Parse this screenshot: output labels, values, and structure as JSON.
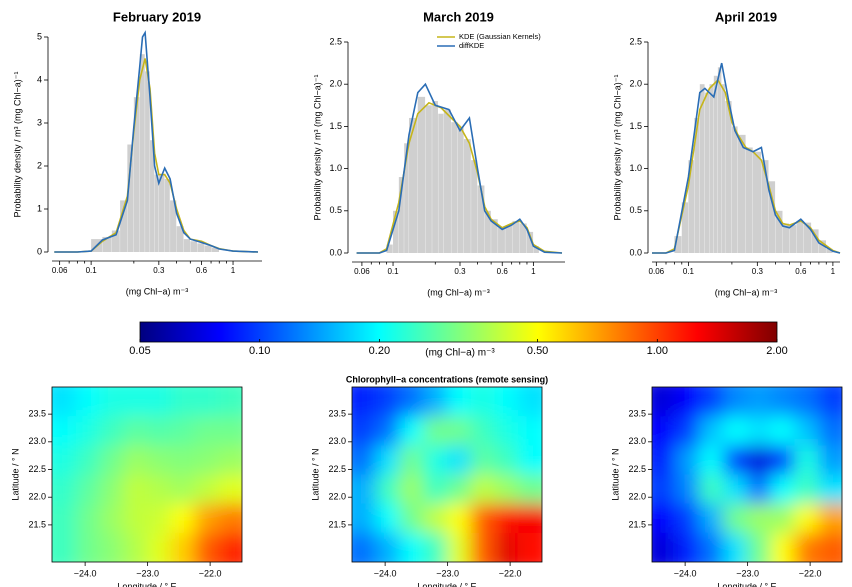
{
  "maps_title": "Chlorophyll−a concentrations (remote sensing)",
  "chart_data": [
    {
      "type": "density",
      "title": "February 2019",
      "xlabel": "(mg Chl−a) m⁻³",
      "ylabel": "Probability density / m³ (mg Chl−a)⁻¹",
      "xscale": "log",
      "xlim": [
        0.053,
        1.6
      ],
      "xticks": [
        0.06,
        0.1,
        0.3,
        0.6,
        1
      ],
      "xminorticks": [
        0.07,
        0.08,
        0.09,
        0.2,
        0.4,
        0.5,
        0.7,
        0.8,
        0.9
      ],
      "ylim": [
        0,
        5
      ],
      "yticks": [
        0,
        1,
        2,
        3,
        4,
        5
      ],
      "histogram": {
        "color": "#cfcfcf",
        "bins": [
          0.1,
          0.12,
          0.14,
          0.16,
          0.18,
          0.2,
          0.22,
          0.24,
          0.26,
          0.28,
          0.3,
          0.33,
          0.36,
          0.4,
          0.45,
          0.5,
          0.56,
          0.63,
          0.71,
          0.8
        ],
        "counts": [
          0.3,
          0.35,
          0.5,
          1.2,
          2.5,
          3.6,
          4.6,
          4.2,
          2.6,
          1.8,
          1.8,
          1.7,
          1.2,
          0.6,
          0.3,
          0.25,
          0.2,
          0.15,
          0.1
        ]
      },
      "series": [
        {
          "name": "KDE (Gaussian Kernels)",
          "color": "#c5b51a",
          "x": [
            0.055,
            0.08,
            0.1,
            0.12,
            0.15,
            0.18,
            0.2,
            0.22,
            0.24,
            0.26,
            0.28,
            0.3,
            0.33,
            0.36,
            0.4,
            0.45,
            0.5,
            0.6,
            0.7,
            0.8,
            1,
            1.5
          ],
          "values": [
            0,
            0,
            0.02,
            0.25,
            0.45,
            1.3,
            2.8,
            4.0,
            4.5,
            3.8,
            2.3,
            1.8,
            1.8,
            1.6,
            1.0,
            0.5,
            0.3,
            0.25,
            0.15,
            0.08,
            0.02,
            0
          ]
        },
        {
          "name": "diffKDE",
          "color": "#2a6db5",
          "x": [
            0.055,
            0.08,
            0.1,
            0.12,
            0.15,
            0.18,
            0.2,
            0.22,
            0.23,
            0.24,
            0.26,
            0.28,
            0.3,
            0.33,
            0.36,
            0.4,
            0.45,
            0.5,
            0.6,
            0.7,
            0.8,
            1,
            1.5
          ],
          "values": [
            0,
            0,
            0.02,
            0.28,
            0.4,
            1.2,
            2.9,
            4.3,
            5.0,
            5.1,
            3.6,
            2.0,
            1.6,
            1.95,
            1.7,
            0.9,
            0.45,
            0.3,
            0.22,
            0.15,
            0.07,
            0.02,
            0
          ]
        }
      ]
    },
    {
      "type": "density",
      "title": "March 2019",
      "xlabel": "(mg Chl−a) m⁻³",
      "ylabel": "Probability density / m³ (mg Chl−a)⁻¹",
      "xscale": "log",
      "xlim": [
        0.051,
        1.68
      ],
      "xticks": [
        0.06,
        0.1,
        0.3,
        0.6,
        1
      ],
      "xminorticks": [
        0.07,
        0.08,
        0.09,
        0.2,
        0.4,
        0.5,
        0.7,
        0.8,
        0.9
      ],
      "ylim": [
        0,
        2.5
      ],
      "yticks": [
        {
          "value": 0,
          "label": "0.0"
        },
        0.5,
        {
          "value": 1,
          "label": "1.0"
        },
        1.5,
        {
          "value": 2,
          "label": "2.0"
        },
        2.5
      ],
      "legend": "top-right",
      "histogram": {
        "color": "#cfcfcf",
        "bins": [
          0.09,
          0.1,
          0.11,
          0.12,
          0.13,
          0.15,
          0.17,
          0.19,
          0.21,
          0.23,
          0.26,
          0.29,
          0.32,
          0.36,
          0.4,
          0.45,
          0.5,
          0.56,
          0.63,
          0.71,
          0.8,
          0.9,
          1.0,
          1.1
        ],
        "counts": [
          0.1,
          0.5,
          0.9,
          1.3,
          1.6,
          1.85,
          1.75,
          1.8,
          1.65,
          1.7,
          1.55,
          1.5,
          1.35,
          1.1,
          0.8,
          0.5,
          0.4,
          0.3,
          0.32,
          0.38,
          0.35,
          0.25,
          0.08
        ]
      },
      "series": [
        {
          "name": "KDE (Gaussian Kernels)",
          "color": "#c5b51a",
          "x": [
            0.055,
            0.08,
            0.09,
            0.11,
            0.13,
            0.15,
            0.18,
            0.22,
            0.26,
            0.3,
            0.35,
            0.4,
            0.45,
            0.5,
            0.6,
            0.7,
            0.8,
            0.9,
            1,
            1.2,
            1.6
          ],
          "values": [
            0,
            0,
            0.05,
            0.6,
            1.3,
            1.65,
            1.78,
            1.72,
            1.6,
            1.5,
            1.3,
            0.95,
            0.55,
            0.4,
            0.3,
            0.35,
            0.38,
            0.3,
            0.1,
            0.02,
            0
          ]
        },
        {
          "name": "diffKDE",
          "color": "#2a6db5",
          "x": [
            0.055,
            0.08,
            0.09,
            0.11,
            0.13,
            0.15,
            0.17,
            0.2,
            0.25,
            0.3,
            0.35,
            0.4,
            0.45,
            0.5,
            0.6,
            0.7,
            0.8,
            0.9,
            1,
            1.2,
            1.6
          ],
          "values": [
            0,
            0,
            0.03,
            0.5,
            1.4,
            1.9,
            2.0,
            1.75,
            1.7,
            1.45,
            1.6,
            1.0,
            0.5,
            0.38,
            0.28,
            0.33,
            0.4,
            0.28,
            0.08,
            0.01,
            0
          ]
        }
      ]
    },
    {
      "type": "density",
      "title": "April 2019",
      "xlabel": "(mg Chl−a) m⁻³",
      "ylabel": "Probability density / m³ (mg Chl−a)⁻¹",
      "xscale": "log",
      "xlim": [
        0.056,
        1.12
      ],
      "xticks": [
        0.06,
        0.1,
        0.3,
        0.6,
        1
      ],
      "xminorticks": [
        0.07,
        0.08,
        0.09,
        0.2,
        0.4,
        0.5,
        0.7,
        0.8,
        0.9
      ],
      "ylim": [
        0,
        2.5
      ],
      "yticks": [
        {
          "value": 0,
          "label": "0.0"
        },
        0.5,
        {
          "value": 1,
          "label": "1.0"
        },
        1.5,
        {
          "value": 2,
          "label": "2.0"
        },
        2.5
      ],
      "histogram": {
        "color": "#cfcfcf",
        "bins": [
          0.08,
          0.09,
          0.1,
          0.11,
          0.12,
          0.13,
          0.14,
          0.15,
          0.16,
          0.17,
          0.18,
          0.2,
          0.22,
          0.25,
          0.28,
          0.32,
          0.36,
          0.4,
          0.45,
          0.5,
          0.56,
          0.63,
          0.71,
          0.8,
          0.9,
          1.0
        ],
        "counts": [
          0.2,
          0.6,
          1.1,
          1.6,
          2.0,
          1.9,
          2.0,
          2.1,
          2.2,
          2.0,
          1.8,
          1.5,
          1.4,
          1.25,
          1.2,
          1.1,
          0.85,
          0.5,
          0.35,
          0.33,
          0.38,
          0.36,
          0.28,
          0.15,
          0.05
        ]
      },
      "series": [
        {
          "name": "KDE (Gaussian Kernels)",
          "color": "#c5b51a",
          "x": [
            0.056,
            0.07,
            0.08,
            0.1,
            0.12,
            0.14,
            0.16,
            0.18,
            0.2,
            0.22,
            0.25,
            0.28,
            0.32,
            0.36,
            0.4,
            0.45,
            0.5,
            0.6,
            0.7,
            0.8,
            1,
            1.12
          ],
          "values": [
            0,
            0,
            0.05,
            0.8,
            1.7,
            1.95,
            2.05,
            1.9,
            1.55,
            1.4,
            1.25,
            1.2,
            1.1,
            0.8,
            0.5,
            0.35,
            0.33,
            0.38,
            0.3,
            0.15,
            0.03,
            0
          ]
        },
        {
          "name": "diffKDE",
          "color": "#2a6db5",
          "x": [
            0.056,
            0.07,
            0.08,
            0.1,
            0.12,
            0.13,
            0.15,
            0.17,
            0.19,
            0.21,
            0.24,
            0.28,
            0.32,
            0.36,
            0.4,
            0.45,
            0.5,
            0.6,
            0.7,
            0.8,
            1,
            1.12
          ],
          "values": [
            0,
            0,
            0.03,
            0.9,
            1.9,
            1.95,
            1.85,
            2.25,
            1.8,
            1.45,
            1.25,
            1.2,
            1.25,
            0.75,
            0.45,
            0.32,
            0.3,
            0.4,
            0.28,
            0.12,
            0.02,
            0
          ]
        }
      ]
    },
    {
      "type": "colorbar",
      "label": "(mg Chl−a) m⁻³",
      "scale": "log",
      "lim": [
        0.05,
        2
      ],
      "ticks": [
        0.05,
        {
          "value": 0.1,
          "label": "0.10"
        },
        {
          "value": 0.2,
          "label": "0.20"
        },
        {
          "value": 0.5,
          "label": "0.50"
        },
        {
          "value": 1,
          "label": "1.00"
        },
        {
          "value": 2,
          "label": "2.00"
        }
      ],
      "colormap": [
        "#00007f",
        "#0000ff",
        "#007fff",
        "#00ffff",
        "#7fff7f",
        "#ffff00",
        "#ff7f00",
        "#ff0000",
        "#7f0000"
      ]
    },
    {
      "type": "heatmap",
      "xlabel": "Longitude / ° E",
      "ylabel": "Latitude / ° N",
      "xlim": [
        -24.53,
        -21.49
      ],
      "ylim": [
        20.83,
        23.99
      ],
      "xticks": [
        {
          "value": -24,
          "label": "−24.0"
        },
        {
          "value": -23,
          "label": "−23.0"
        },
        {
          "value": -22,
          "label": "−22.0"
        }
      ],
      "yticks": [
        21.5,
        {
          "value": 22,
          "label": "22.0"
        },
        22.5,
        {
          "value": 23,
          "label": "23.0"
        },
        23.5
      ],
      "z": [
        [
          0.18,
          0.2,
          0.22,
          0.22,
          0.22,
          0.24,
          0.24,
          0.25
        ],
        [
          0.2,
          0.22,
          0.25,
          0.28,
          0.27,
          0.28,
          0.3,
          0.3
        ],
        [
          0.22,
          0.25,
          0.3,
          0.35,
          0.33,
          0.32,
          0.33,
          0.35
        ],
        [
          0.24,
          0.28,
          0.33,
          0.4,
          0.38,
          0.36,
          0.4,
          0.45
        ],
        [
          0.25,
          0.3,
          0.35,
          0.4,
          0.42,
          0.5,
          0.7,
          0.8
        ],
        [
          0.25,
          0.3,
          0.33,
          0.38,
          0.45,
          0.6,
          0.9,
          1.1
        ]
      ]
    },
    {
      "type": "heatmap",
      "xlabel": "Longitude / ° E",
      "ylabel": "Latitude / ° N",
      "xlim": [
        -24.53,
        -21.49
      ],
      "ylim": [
        20.83,
        23.99
      ],
      "xticks": [
        {
          "value": -24,
          "label": "−24.0"
        },
        {
          "value": -23,
          "label": "−23.0"
        },
        {
          "value": -22,
          "label": "−22.0"
        }
      ],
      "yticks": [
        21.5,
        {
          "value": 22,
          "label": "22.0"
        },
        22.5,
        {
          "value": 23,
          "label": "23.0"
        },
        23.5
      ],
      "z": [
        [
          0.09,
          0.1,
          0.12,
          0.15,
          0.2,
          0.22,
          0.2,
          0.18
        ],
        [
          0.1,
          0.12,
          0.2,
          0.3,
          0.3,
          0.25,
          0.22,
          0.2
        ],
        [
          0.12,
          0.18,
          0.3,
          0.22,
          0.18,
          0.28,
          0.25,
          0.2
        ],
        [
          0.15,
          0.25,
          0.35,
          0.25,
          0.3,
          0.4,
          0.35,
          0.3
        ],
        [
          0.15,
          0.2,
          0.3,
          0.4,
          0.5,
          0.9,
          1.2,
          1.3
        ],
        [
          0.12,
          0.15,
          0.2,
          0.25,
          0.45,
          0.9,
          1.4,
          1.2
        ]
      ]
    },
    {
      "type": "heatmap",
      "xlabel": "Longitude / ° E",
      "ylabel": "Latitude / ° N",
      "xlim": [
        -24.53,
        -21.49
      ],
      "ylim": [
        20.83,
        23.99
      ],
      "xticks": [
        {
          "value": -24,
          "label": "−24.0"
        },
        {
          "value": -23,
          "label": "−23.0"
        },
        {
          "value": -22,
          "label": "−22.0"
        }
      ],
      "yticks": [
        21.5,
        {
          "value": 22,
          "label": "22.0"
        },
        22.5,
        {
          "value": 23,
          "label": "23.0"
        },
        23.5
      ],
      "z": [
        [
          0.07,
          0.08,
          0.1,
          0.13,
          0.14,
          0.13,
          0.12,
          0.1
        ],
        [
          0.08,
          0.1,
          0.16,
          0.2,
          0.18,
          0.2,
          0.16,
          0.12
        ],
        [
          0.09,
          0.14,
          0.2,
          0.1,
          0.07,
          0.1,
          0.22,
          0.14
        ],
        [
          0.1,
          0.13,
          0.25,
          0.18,
          0.12,
          0.2,
          0.25,
          0.18
        ],
        [
          0.08,
          0.1,
          0.15,
          0.3,
          0.35,
          0.35,
          0.5,
          0.7
        ],
        [
          0.07,
          0.09,
          0.12,
          0.18,
          0.3,
          0.5,
          0.8,
          0.9
        ]
      ]
    }
  ]
}
